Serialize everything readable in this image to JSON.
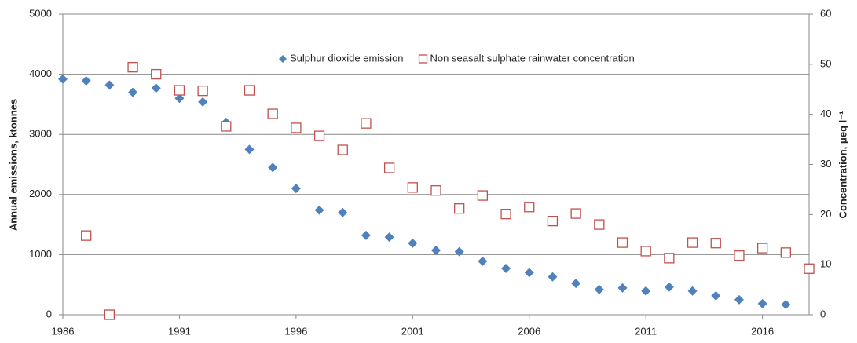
{
  "chart_data": {
    "type": "scatter",
    "x": [
      1986,
      1987,
      1988,
      1989,
      1990,
      1991,
      1992,
      1993,
      1994,
      1995,
      1996,
      1997,
      1998,
      1999,
      2000,
      2001,
      2002,
      2003,
      2004,
      2005,
      2006,
      2007,
      2008,
      2009,
      2010,
      2011,
      2012,
      2013,
      2014,
      2015,
      2016,
      2017,
      2018
    ],
    "series": [
      {
        "name": "Sulphur dioxide emission",
        "color": "#4f81bd",
        "marker": "diamond",
        "axis": "y",
        "values": [
          3920,
          3890,
          3820,
          3700,
          3770,
          3600,
          3540,
          3200,
          2750,
          2450,
          2100,
          1740,
          1700,
          1320,
          1290,
          1190,
          1070,
          1050,
          890,
          770,
          700,
          630,
          520,
          420,
          445,
          395,
          460,
          395,
          315,
          250,
          185,
          170,
          null
        ]
      },
      {
        "name": "Non seasalt sulphate rainwater concentration",
        "color": "#c0504d",
        "marker": "square",
        "axis": "y2",
        "values": [
          null,
          15.8,
          0,
          49.4,
          48,
          44.8,
          44.7,
          37.6,
          44.8,
          40.1,
          37.3,
          35.7,
          32.9,
          38.2,
          29.3,
          25.4,
          24.8,
          21.2,
          23.8,
          20.1,
          21.5,
          18.7,
          20.2,
          18,
          14.4,
          12.7,
          11.3,
          14.4,
          14.3,
          11.8,
          13.3,
          12.4,
          9.2
        ]
      }
    ],
    "y_label": "Annual emissions, ktonnes",
    "y2_label": "Concentration, μeq l⁻¹",
    "xlim": [
      1986,
      2018
    ],
    "xticks": [
      1986,
      1991,
      1996,
      2001,
      2006,
      2011,
      2016
    ],
    "ylim": [
      0,
      5000
    ],
    "yticks": [
      0,
      1000,
      2000,
      3000,
      4000,
      5000
    ],
    "y2lim": [
      0,
      60
    ],
    "y2ticks": [
      0,
      10,
      20,
      30,
      40,
      50,
      60
    ],
    "grid": true,
    "legend": "top"
  }
}
